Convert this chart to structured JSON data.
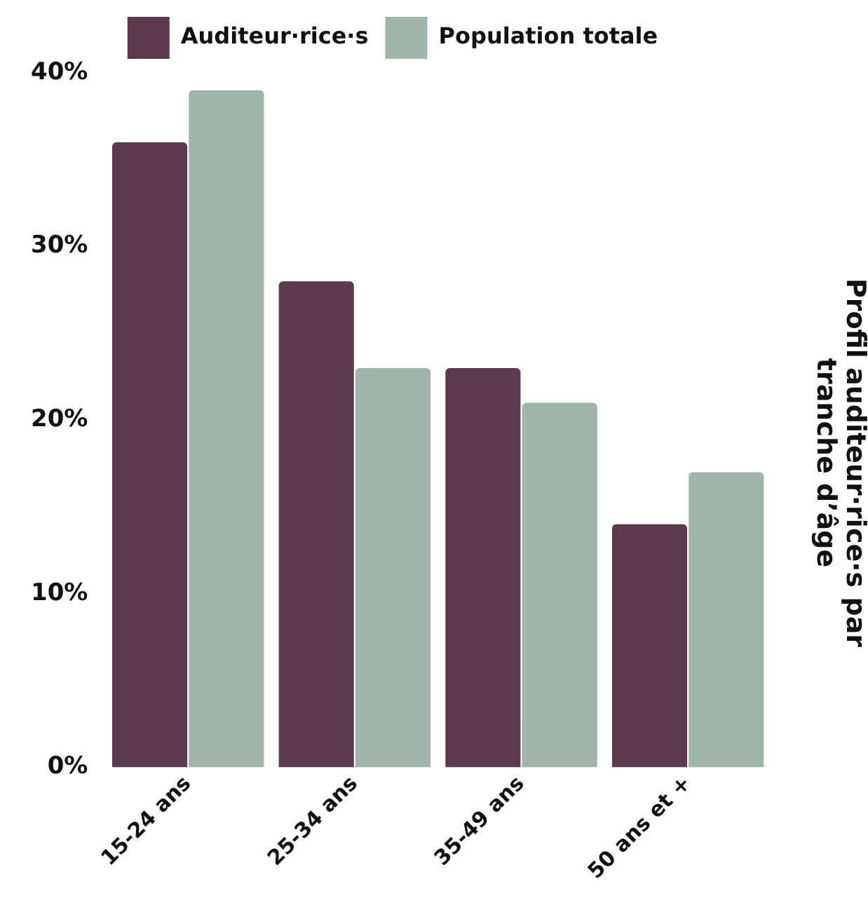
{
  "chart_data": {
    "type": "bar",
    "title": "Profil auditeur·rice·s par tranche d’âge",
    "categories": [
      "15-24 ans",
      "25-34 ans",
      "35-49 ans",
      "50 ans et +"
    ],
    "series": [
      {
        "name": "Auditeur·rice·s",
        "color": "#5b3a4e",
        "values": [
          36,
          28,
          23,
          14
        ]
      },
      {
        "name": "Population totale",
        "color": "#9fb5aa",
        "values": [
          39,
          23,
          21,
          17
        ]
      }
    ],
    "ylim": [
      0,
      40
    ],
    "yticks": [
      {
        "value": 0,
        "label": "0%"
      },
      {
        "value": 10,
        "label": "10%"
      },
      {
        "value": 20,
        "label": "20%"
      },
      {
        "value": 30,
        "label": "30%"
      },
      {
        "value": 40,
        "label": "40%"
      }
    ],
    "grid": false,
    "legend": "top"
  }
}
